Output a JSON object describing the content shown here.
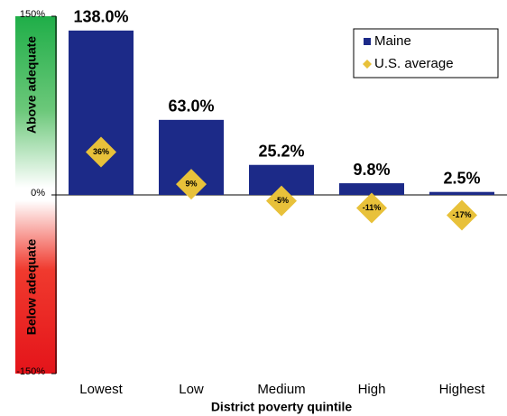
{
  "chart_data": {
    "type": "bar",
    "x_label": "District poverty quintile",
    "annotations": [
      "Above adequate",
      "Below adequate"
    ],
    "categories": [
      "Lowest",
      "Low",
      "Medium",
      "High",
      "Highest"
    ],
    "series": [
      {
        "name": "Maine",
        "color": "#1c2a88",
        "values": [
          138.0,
          63.0,
          25.2,
          9.8,
          2.5
        ],
        "value_labels": [
          "138.0%",
          "63.0%",
          "25.2%",
          "9.8%",
          "2.5%"
        ]
      },
      {
        "name": "U.S. average",
        "color": "#e8c13a",
        "marker": "diamond",
        "values": [
          36,
          9,
          -5,
          -11,
          -17
        ],
        "value_labels": [
          "36%",
          "9%",
          "-5%",
          "-11%",
          "-17%"
        ]
      }
    ],
    "ylim": [
      -150,
      150
    ],
    "yticks": [
      {
        "value": -150,
        "label": "-150%"
      },
      {
        "value": 0,
        "label": "0%"
      },
      {
        "value": 150,
        "label": "150%"
      }
    ],
    "legend": "upper right"
  }
}
